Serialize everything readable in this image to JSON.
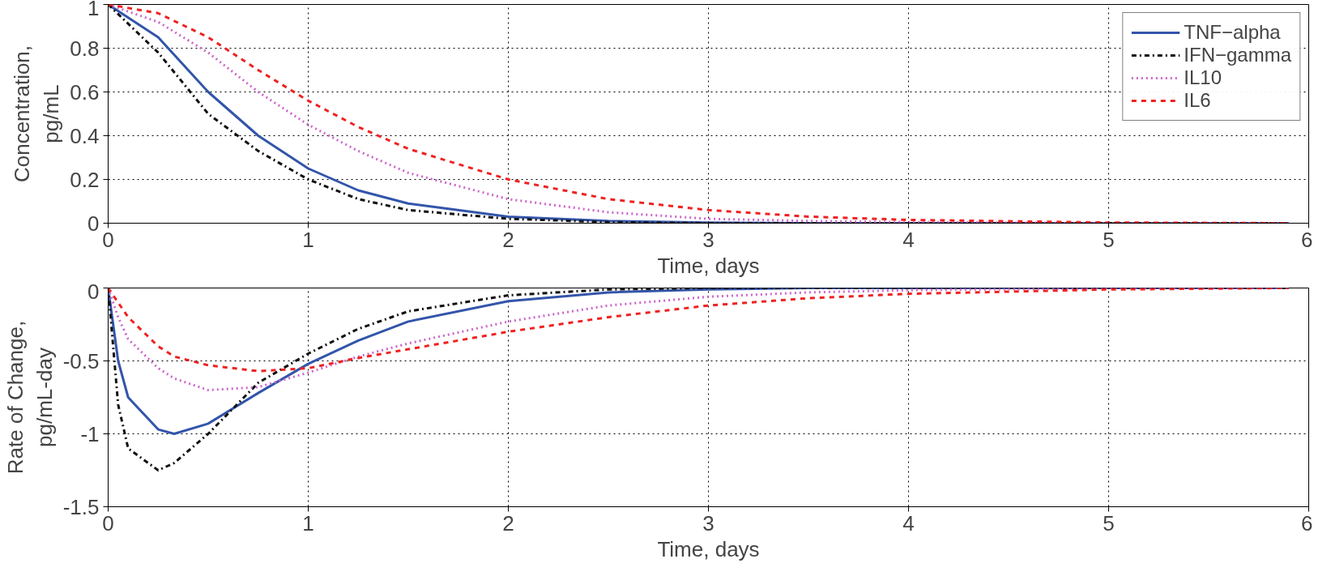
{
  "chart_data": [
    {
      "type": "line",
      "xlabel": "Time, days",
      "ylabel": "Concentration,\npg/mL",
      "xlim": [
        0,
        6
      ],
      "ylim": [
        0,
        1
      ],
      "xticks": [
        0,
        1,
        2,
        3,
        4,
        5,
        6
      ],
      "yticks": [
        0,
        0.2,
        0.4,
        0.6,
        0.8,
        1
      ],
      "grid": true,
      "legend": "top right",
      "x": [
        0,
        0.25,
        0.5,
        0.75,
        1,
        1.25,
        1.5,
        2,
        2.5,
        3,
        3.5,
        4,
        5,
        5.9
      ],
      "series": [
        {
          "name": "TNF−alpha",
          "color": "#3355aa",
          "line_style": "solid",
          "values": [
            1,
            0.85,
            0.6,
            0.4,
            0.25,
            0.15,
            0.09,
            0.03,
            0.01,
            0.003,
            0,
            0,
            0,
            0
          ]
        },
        {
          "name": "IFN−gamma",
          "color": "#111111",
          "line_style": "dashdot",
          "values": [
            1,
            0.78,
            0.5,
            0.33,
            0.2,
            0.11,
            0.06,
            0.02,
            0.005,
            0,
            0,
            0,
            0,
            0
          ]
        },
        {
          "name": "IL10",
          "color": "#cc66cc",
          "line_style": "dotted",
          "values": [
            1,
            0.92,
            0.78,
            0.6,
            0.45,
            0.33,
            0.23,
            0.11,
            0.05,
            0.02,
            0.01,
            0.005,
            0,
            0
          ]
        },
        {
          "name": "IL6",
          "color": "#ee2222",
          "line_style": "dashed",
          "values": [
            1,
            0.96,
            0.85,
            0.7,
            0.56,
            0.44,
            0.34,
            0.2,
            0.11,
            0.06,
            0.03,
            0.015,
            0.003,
            0
          ]
        }
      ]
    },
    {
      "type": "line",
      "xlabel": "Time, days",
      "ylabel": "Rate of Change,\npg/mL-day",
      "xlim": [
        0,
        6
      ],
      "ylim": [
        -1.5,
        0
      ],
      "xticks": [
        0,
        1,
        2,
        3,
        4,
        5,
        6
      ],
      "yticks": [
        -1.5,
        -1,
        -0.5,
        0
      ],
      "grid": true,
      "legend": false,
      "x": [
        0,
        0.05,
        0.1,
        0.25,
        0.33,
        0.5,
        0.75,
        1,
        1.25,
        1.5,
        2,
        2.5,
        3,
        3.5,
        4,
        5,
        5.9
      ],
      "series": [
        {
          "color": "#3355aa",
          "line_style": "solid",
          "values": [
            0,
            -0.5,
            -0.75,
            -0.97,
            -1.0,
            -0.93,
            -0.72,
            -0.52,
            -0.36,
            -0.23,
            -0.09,
            -0.03,
            -0.01,
            0,
            0,
            0,
            0
          ]
        },
        {
          "color": "#111111",
          "line_style": "dashdot",
          "values": [
            0,
            -0.8,
            -1.1,
            -1.25,
            -1.2,
            -1.0,
            -0.65,
            -0.45,
            -0.28,
            -0.16,
            -0.05,
            -0.01,
            0,
            0,
            0,
            0,
            0
          ]
        },
        {
          "color": "#cc66cc",
          "line_style": "dotted",
          "values": [
            0,
            -0.2,
            -0.35,
            -0.55,
            -0.62,
            -0.7,
            -0.68,
            -0.58,
            -0.47,
            -0.38,
            -0.23,
            -0.12,
            -0.06,
            -0.03,
            -0.015,
            0,
            0
          ]
        },
        {
          "color": "#ee2222",
          "line_style": "dashed",
          "values": [
            0,
            -0.1,
            -0.2,
            -0.4,
            -0.47,
            -0.53,
            -0.57,
            -0.55,
            -0.48,
            -0.42,
            -0.3,
            -0.2,
            -0.12,
            -0.07,
            -0.04,
            -0.01,
            0
          ]
        }
      ]
    }
  ]
}
